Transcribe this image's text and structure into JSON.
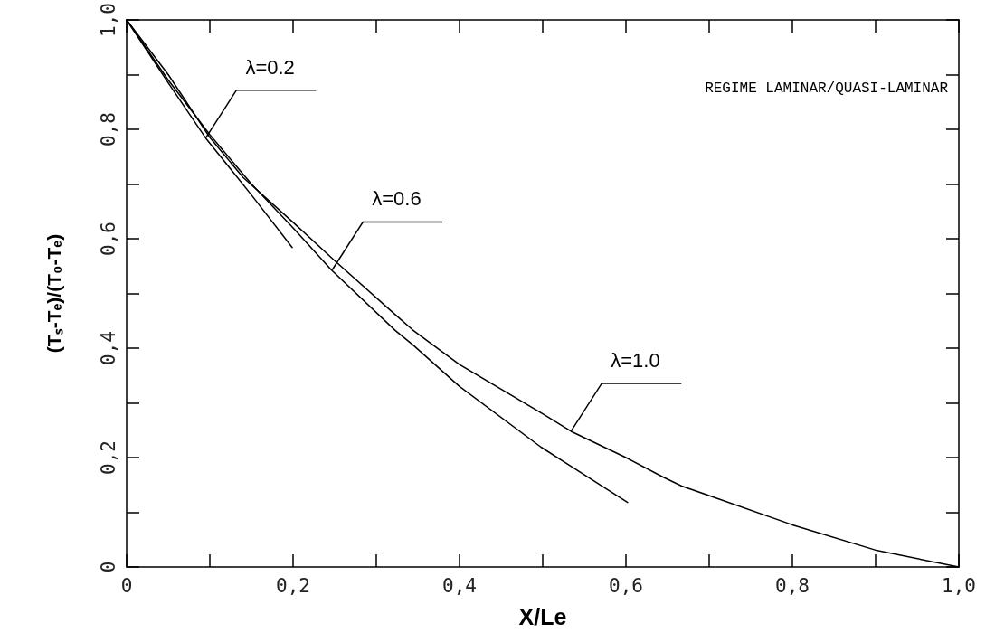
{
  "chart_data": {
    "type": "line",
    "xlabel": "X/Le",
    "ylabel": "(Tₛ-Tₑ)/(T₀-Tₑ)",
    "series": [
      {
        "color": "#000000",
        "x": [
          0,
          0.05,
          0.095,
          0.15,
          0.199
        ],
        "values": [
          1,
          0.885,
          0.784,
          0.68,
          0.584
        ]
      },
      {
        "color": "#000000",
        "x": [
          0,
          0.05,
          0.1,
          0.15,
          0.2,
          0.246,
          0.323,
          0.344,
          0.4,
          0.498,
          0.602
        ],
        "values": [
          1,
          0.89,
          0.79,
          0.7,
          0.62,
          0.543,
          0.432,
          0.406,
          0.33,
          0.219,
          0.118
        ]
      },
      {
        "color": "#000000",
        "x": [
          0,
          0.05,
          0.1,
          0.14,
          0.2,
          0.25,
          0.323,
          0.344,
          0.4,
          0.5,
          0.534,
          0.6,
          0.645,
          0.667,
          0.8,
          0.902,
          1.0
        ],
        "values": [
          1,
          0.9,
          0.785,
          0.712,
          0.63,
          0.56,
          0.461,
          0.433,
          0.37,
          0.28,
          0.248,
          0.2,
          0.164,
          0.148,
          0.077,
          0.03,
          0
        ]
      }
    ],
    "xlim": [
      0,
      1
    ],
    "ylim": [
      0,
      1
    ],
    "xticks": [
      0,
      {
        "value": 0.1,
        "label": null
      },
      {
        "value": 0.2,
        "label": "0,2"
      },
      {
        "value": 0.3,
        "label": null
      },
      {
        "value": 0.4,
        "label": "0,4"
      },
      {
        "value": 0.5,
        "label": null
      },
      {
        "value": 0.6,
        "label": "0,6"
      },
      {
        "value": 0.7,
        "label": null
      },
      {
        "value": 0.8,
        "label": "0,8"
      },
      {
        "value": 0.9,
        "label": null
      },
      {
        "value": 1,
        "label": "1,0"
      }
    ],
    "yticks": [
      0,
      {
        "value": 0.1,
        "label": null
      },
      {
        "value": 0.2,
        "label": "0,2"
      },
      {
        "value": 0.3,
        "label": null
      },
      {
        "value": 0.4,
        "label": "0,4"
      },
      {
        "value": 0.5,
        "label": null
      },
      {
        "value": 0.6,
        "label": "0,6"
      },
      {
        "value": 0.7,
        "label": null
      },
      {
        "value": 0.8,
        "label": "0,8"
      },
      {
        "value": 0.9,
        "label": null
      },
      {
        "value": 1,
        "label": "1,0"
      }
    ],
    "annotations": [
      {
        "text": "λ=0.2",
        "x": 0.095,
        "y": 0.784
      },
      {
        "text": "λ=0.6",
        "x": 0.247,
        "y": 0.543
      },
      {
        "text": "λ=1.0",
        "x": 0.534,
        "y": 0.248
      },
      "REGIME LAMINAR/QUASI-LAMINAR"
    ],
    "grid": false,
    "marker": "none",
    "line_style": "solid"
  }
}
